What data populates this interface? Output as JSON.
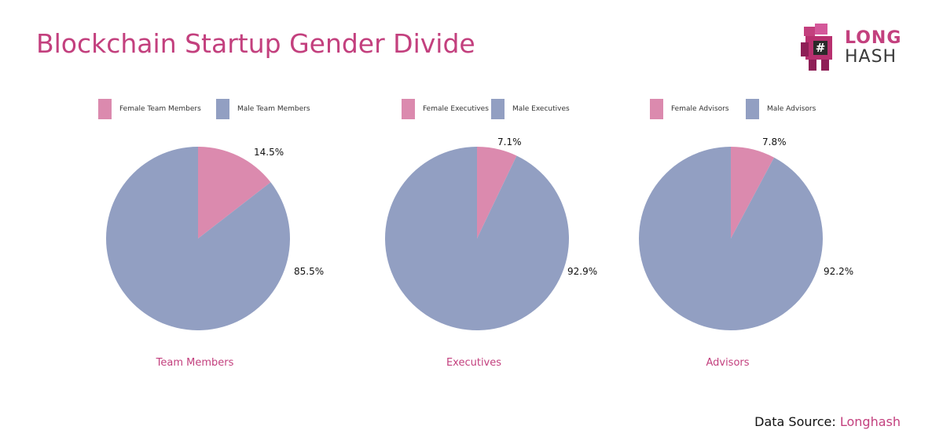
{
  "title": "Blockchain Startup Gender Divide",
  "logo": {
    "line1": "LONG",
    "line2": "HASH"
  },
  "colors": {
    "female": "#db8aae",
    "male": "#929fc2",
    "accent": "#c3407e"
  },
  "chart_data": [
    {
      "type": "pie",
      "title": "Team Members",
      "slices": [
        {
          "label": "Female Team Members",
          "value": 14.5,
          "text": "14.5%"
        },
        {
          "label": "Male Team Members",
          "value": 85.5,
          "text": "85.5%"
        }
      ],
      "legend_position": "top"
    },
    {
      "type": "pie",
      "title": "Executives",
      "slices": [
        {
          "label": "Female Executives",
          "value": 7.1,
          "text": "7.1%"
        },
        {
          "label": "Male Executives",
          "value": 92.9,
          "text": "92.9%"
        }
      ],
      "legend_position": "top"
    },
    {
      "type": "pie",
      "title": "Advisors",
      "slices": [
        {
          "label": "Female Advisors",
          "value": 7.8,
          "text": "7.8%"
        },
        {
          "label": "Male Advisors",
          "value": 92.2,
          "text": "92.2%"
        }
      ],
      "legend_position": "top"
    }
  ],
  "source": {
    "prefix": "Data Source:",
    "name": "Longhash"
  }
}
